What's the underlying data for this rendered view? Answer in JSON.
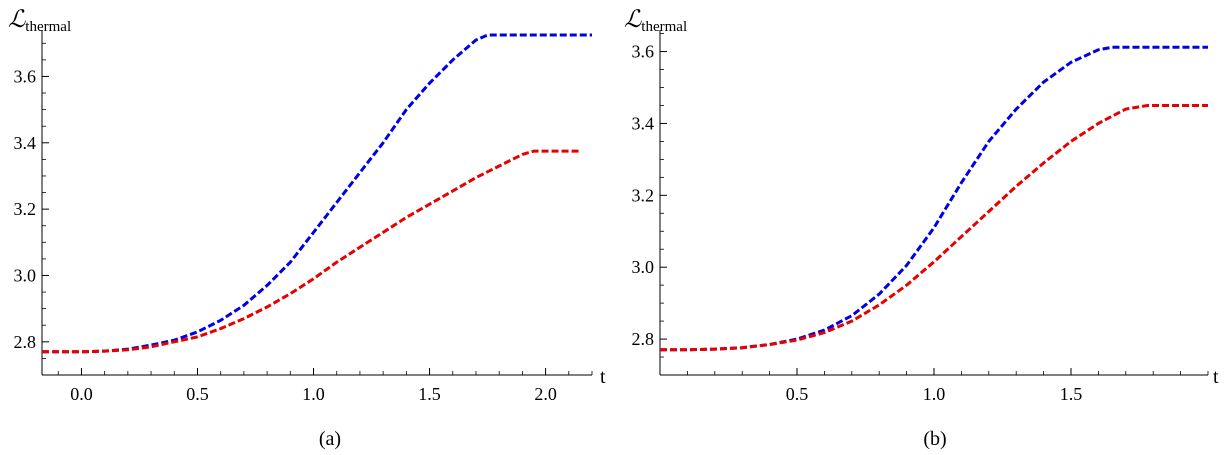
{
  "chart_data": [
    {
      "type": "line",
      "caption": "(a)",
      "ylabel_main": "ℒ",
      "ylabel_sub": "thermal",
      "xlabel": "t",
      "xlim": [
        -0.17,
        2.2
      ],
      "ylim": [
        2.7,
        3.74
      ],
      "xticks": [
        0.0,
        0.5,
        1.0,
        1.5,
        2.0
      ],
      "xtick_labels": [
        "0.0",
        "0.5",
        "1.0",
        "1.5",
        "2.0"
      ],
      "yticks": [
        2.8,
        3.0,
        3.2,
        3.4,
        3.6
      ],
      "ytick_labels": [
        "2.8",
        "3.0",
        "3.2",
        "3.4",
        "3.6"
      ],
      "y_axis_crosses_x": 2.77,
      "series": [
        {
          "color": "#0000e6",
          "style": "dashed",
          "x": [
            -0.17,
            0.0,
            0.1,
            0.2,
            0.3,
            0.4,
            0.5,
            0.6,
            0.7,
            0.8,
            0.9,
            1.0,
            1.1,
            1.2,
            1.3,
            1.4,
            1.5,
            1.6,
            1.7,
            1.75,
            1.8,
            1.9,
            2.0,
            2.1,
            2.2
          ],
          "y": [
            2.77,
            2.77,
            2.772,
            2.778,
            2.79,
            2.805,
            2.83,
            2.865,
            2.91,
            2.97,
            3.04,
            3.13,
            3.22,
            3.31,
            3.4,
            3.5,
            3.58,
            3.65,
            3.71,
            3.725,
            3.725,
            3.725,
            3.725,
            3.725,
            3.725
          ]
        },
        {
          "color": "#e60000",
          "style": "dashed",
          "x": [
            -0.17,
            0.0,
            0.1,
            0.2,
            0.3,
            0.4,
            0.5,
            0.6,
            0.7,
            0.8,
            0.9,
            1.0,
            1.1,
            1.2,
            1.3,
            1.4,
            1.5,
            1.6,
            1.7,
            1.8,
            1.9,
            1.95,
            2.0,
            2.1,
            2.15
          ],
          "y": [
            2.77,
            2.77,
            2.772,
            2.776,
            2.785,
            2.8,
            2.815,
            2.84,
            2.87,
            2.905,
            2.945,
            2.99,
            3.04,
            3.085,
            3.13,
            3.175,
            3.215,
            3.255,
            3.295,
            3.33,
            3.365,
            3.375,
            3.375,
            3.375,
            3.375
          ]
        }
      ]
    },
    {
      "type": "line",
      "caption": "(b)",
      "ylabel_main": "ℒ",
      "ylabel_sub": "thermal",
      "xlabel": "t",
      "xlim": [
        0.0,
        2.0
      ],
      "ylim": [
        2.7,
        3.66
      ],
      "xticks": [
        0.5,
        1.0,
        1.5
      ],
      "xtick_labels": [
        "0.5",
        "1.0",
        "1.5"
      ],
      "yticks": [
        2.8,
        3.0,
        3.2,
        3.4,
        3.6
      ],
      "ytick_labels": [
        "2.8",
        "3.0",
        "3.2",
        "3.4",
        "3.6"
      ],
      "y_axis_crosses_x": 0.0,
      "series": [
        {
          "color": "#0000e6",
          "style": "dashed",
          "x": [
            0.0,
            0.1,
            0.2,
            0.3,
            0.4,
            0.5,
            0.6,
            0.7,
            0.8,
            0.9,
            1.0,
            1.1,
            1.2,
            1.3,
            1.4,
            1.5,
            1.6,
            1.65,
            1.7,
            1.8,
            1.9,
            2.0
          ],
          "y": [
            2.77,
            2.77,
            2.772,
            2.776,
            2.785,
            2.8,
            2.825,
            2.865,
            2.925,
            3.005,
            3.11,
            3.235,
            3.35,
            3.44,
            3.515,
            3.57,
            3.605,
            3.612,
            3.612,
            3.612,
            3.612,
            3.612
          ]
        },
        {
          "color": "#e60000",
          "style": "dashed",
          "x": [
            0.0,
            0.1,
            0.2,
            0.3,
            0.4,
            0.5,
            0.6,
            0.7,
            0.8,
            0.9,
            1.0,
            1.1,
            1.2,
            1.3,
            1.4,
            1.5,
            1.6,
            1.7,
            1.78,
            1.8,
            1.9,
            2.0
          ],
          "y": [
            2.77,
            2.77,
            2.772,
            2.776,
            2.785,
            2.797,
            2.818,
            2.85,
            2.895,
            2.95,
            3.015,
            3.085,
            3.155,
            3.225,
            3.29,
            3.35,
            3.4,
            3.44,
            3.45,
            3.45,
            3.45,
            3.45
          ]
        }
      ]
    }
  ]
}
